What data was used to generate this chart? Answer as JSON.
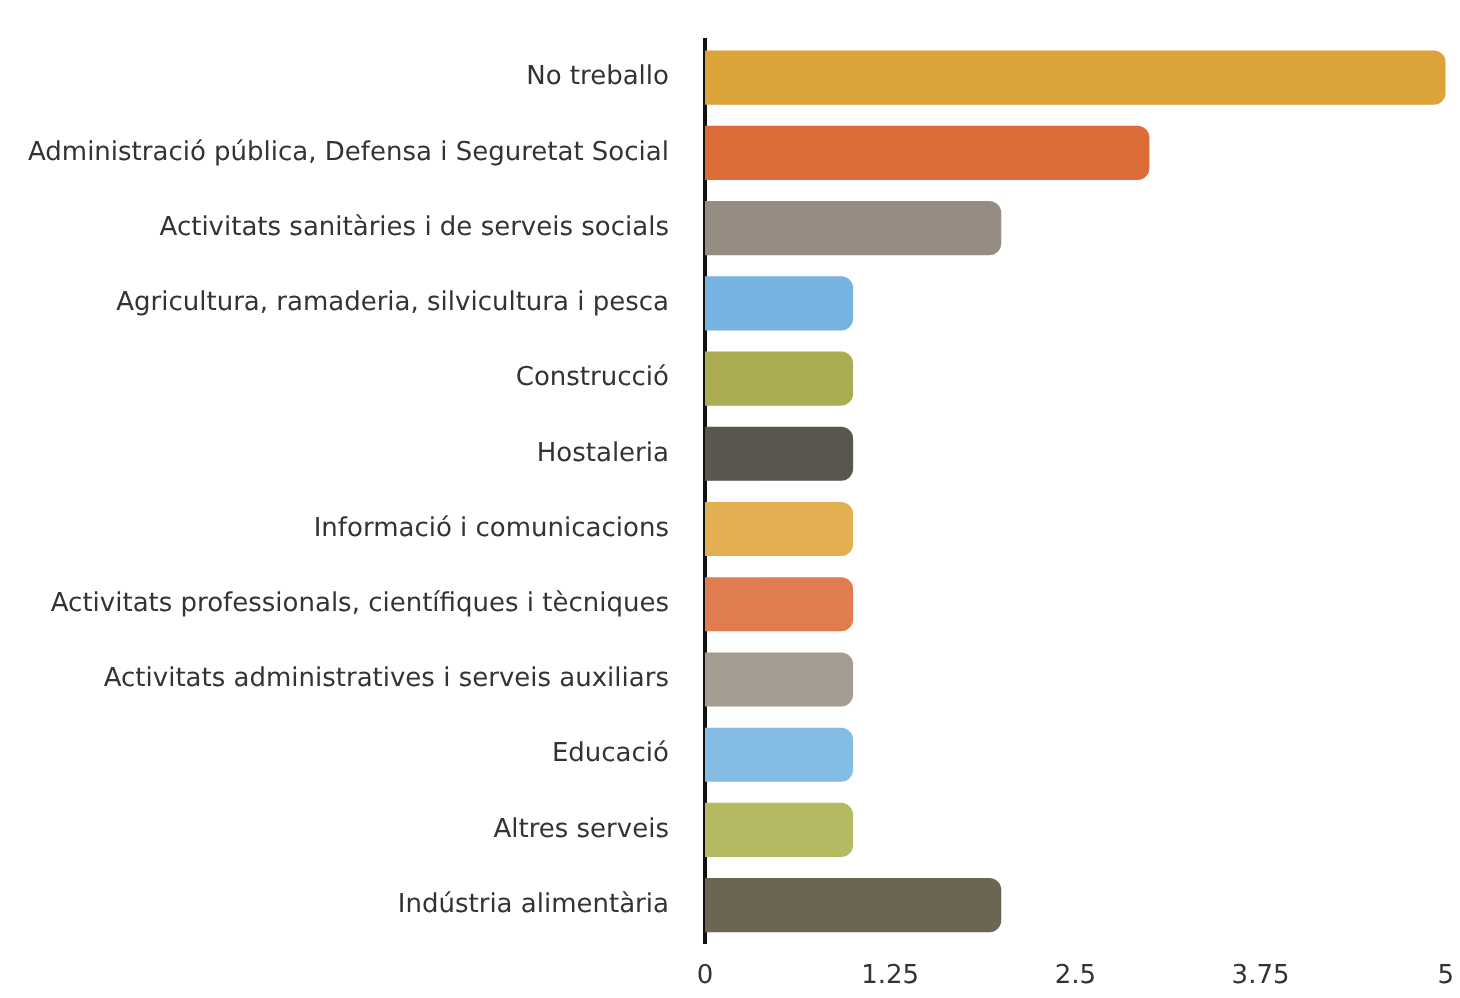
{
  "chart_data": {
    "type": "bar",
    "orientation": "horizontal",
    "categories": [
      "No treballo",
      "Administració pública, Defensa i Seguretat Social",
      "Activitats sanitàries i de serveis socials",
      "Agricultura, ramaderia, silvicultura i pesca",
      "Construcció",
      "Hostaleria",
      "Informació i comunicacions",
      "Activitats professionals, científiques i tècniques",
      "Activitats administratives i serveis auxiliars",
      "Educació",
      "Altres serveis",
      "Indústria alimentària"
    ],
    "values": [
      5,
      3,
      2,
      1,
      1,
      1,
      1,
      1,
      1,
      1,
      1,
      2
    ],
    "colors": [
      "#dca33a",
      "#dc6c37",
      "#968c82",
      "#75b4e0",
      "#acad52",
      "#59564e",
      "#e2b050",
      "#e07c4e",
      "#a59c91",
      "#85bce4",
      "#b5b961",
      "#6c6553"
    ],
    "xlim": [
      0,
      5
    ],
    "xticks": [
      0,
      {
        "value": 1.25,
        "label": "1.25"
      },
      {
        "value": 2.5,
        "label": "2.5"
      },
      {
        "value": 3.75,
        "label": "3.75"
      },
      5
    ],
    "grid": false,
    "legend": false
  }
}
